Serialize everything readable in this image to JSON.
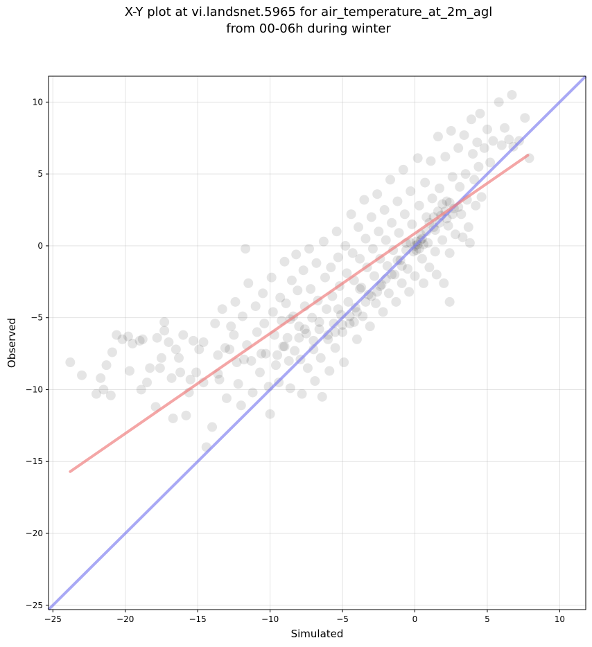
{
  "chart_data": {
    "type": "scatter",
    "title_line1": "X-Y plot at vi.landsnet.5965 for air_temperature_at_2m_agl",
    "title_line2": "from 00-06h during winter",
    "xlabel": "Simulated",
    "ylabel": "Observed",
    "xlim": [
      -25.3,
      11.8
    ],
    "ylim": [
      -25.3,
      11.8
    ],
    "xticks": [
      -25,
      -20,
      -15,
      -10,
      -5,
      0,
      5,
      10
    ],
    "yticks": [
      -25,
      -20,
      -15,
      -10,
      -5,
      0,
      5,
      10
    ],
    "xtick_labels": [
      "−25",
      "−20",
      "−15",
      "−10",
      "−5",
      "0",
      "5",
      "10"
    ],
    "ytick_labels": [
      "−25",
      "−20",
      "−15",
      "−10",
      "−5",
      "0",
      "5",
      "10"
    ],
    "grid": true,
    "point_color": "#000000",
    "point_alpha": 0.1,
    "regression_line": {
      "color": "#f08080",
      "x": [
        -23.8,
        7.8
      ],
      "y": [
        -15.7,
        6.3
      ]
    },
    "identity_line": {
      "color": "#7b7bf0",
      "x": [
        -25.3,
        11.8
      ],
      "y": [
        -25.3,
        11.8
      ]
    },
    "points": [
      [
        -23.8,
        -8.1
      ],
      [
        -23.0,
        -9.0
      ],
      [
        -22.0,
        -10.3
      ],
      [
        -21.7,
        -9.2
      ],
      [
        -21.5,
        -10.0
      ],
      [
        -21.3,
        -8.3
      ],
      [
        -21.0,
        -10.4
      ],
      [
        -20.9,
        -7.4
      ],
      [
        -20.6,
        -6.2
      ],
      [
        -20.2,
        -6.5
      ],
      [
        -19.8,
        -6.3
      ],
      [
        -19.7,
        -8.7
      ],
      [
        -19.5,
        -6.8
      ],
      [
        -19.0,
        -6.6
      ],
      [
        -18.8,
        -6.5
      ],
      [
        -18.9,
        -10.0
      ],
      [
        -18.5,
        -9.5
      ],
      [
        -18.3,
        -8.5
      ],
      [
        -17.9,
        -11.2
      ],
      [
        -17.8,
        -6.4
      ],
      [
        -17.5,
        -7.8
      ],
      [
        -17.3,
        -5.9
      ],
      [
        -17.3,
        -5.3
      ],
      [
        -17.0,
        -6.7
      ],
      [
        -16.8,
        -9.2
      ],
      [
        -16.7,
        -12.0
      ],
      [
        -16.5,
        -7.2
      ],
      [
        -16.2,
        -8.8
      ],
      [
        -16.0,
        -6.2
      ],
      [
        -15.8,
        -11.8
      ],
      [
        -15.6,
        -10.2
      ],
      [
        -15.3,
        -6.6
      ],
      [
        -15.1,
        -8.8
      ],
      [
        -14.9,
        -7.2
      ],
      [
        -14.6,
        -6.7
      ],
      [
        -14.4,
        -14.0
      ],
      [
        -14.0,
        -12.6
      ],
      [
        -13.8,
        -5.4
      ],
      [
        -13.6,
        -7.6
      ],
      [
        -13.5,
        -9.3
      ],
      [
        -13.3,
        -4.4
      ],
      [
        -13.1,
        -7.1
      ],
      [
        -13.0,
        -10.6
      ],
      [
        -12.7,
        -5.6
      ],
      [
        -12.5,
        -6.2
      ],
      [
        -12.4,
        -3.9
      ],
      [
        -12.3,
        -8.1
      ],
      [
        -12.2,
        -9.6
      ],
      [
        -12.0,
        -11.1
      ],
      [
        -11.9,
        -4.9
      ],
      [
        -11.7,
        -0.2
      ],
      [
        -11.6,
        -6.9
      ],
      [
        -11.5,
        -2.6
      ],
      [
        -11.3,
        -8.0
      ],
      [
        -11.2,
        -10.2
      ],
      [
        -11.0,
        -4.2
      ],
      [
        -10.9,
        -6.0
      ],
      [
        -10.7,
        -8.8
      ],
      [
        -10.5,
        -3.3
      ],
      [
        -10.4,
        -5.4
      ],
      [
        -10.3,
        -7.5
      ],
      [
        -10.1,
        -9.8
      ],
      [
        -10.0,
        -11.7
      ],
      [
        -9.9,
        -2.2
      ],
      [
        -9.8,
        -4.6
      ],
      [
        -9.7,
        -6.2
      ],
      [
        -9.6,
        -8.3
      ],
      [
        -9.4,
        -9.5
      ],
      [
        -9.3,
        -3.6
      ],
      [
        -9.2,
        -5.2
      ],
      [
        -9.1,
        -7.0
      ],
      [
        -9.0,
        -1.1
      ],
      [
        -8.9,
        -4.0
      ],
      [
        -8.8,
        -6.4
      ],
      [
        -8.7,
        -8.0
      ],
      [
        -8.6,
        -9.9
      ],
      [
        -8.5,
        -2.4
      ],
      [
        -8.4,
        -4.9
      ],
      [
        -8.3,
        -7.3
      ],
      [
        -8.2,
        -0.6
      ],
      [
        -8.1,
        -3.1
      ],
      [
        -8.0,
        -5.6
      ],
      [
        -7.9,
        -7.9
      ],
      [
        -7.8,
        -10.3
      ],
      [
        -7.7,
        -1.7
      ],
      [
        -7.6,
        -4.2
      ],
      [
        -7.5,
        -6.1
      ],
      [
        -7.4,
        -8.5
      ],
      [
        -7.3,
        -0.2
      ],
      [
        -7.2,
        -3.0
      ],
      [
        -7.1,
        -5.0
      ],
      [
        -7.0,
        -7.2
      ],
      [
        -6.9,
        -9.4
      ],
      [
        -6.8,
        -1.2
      ],
      [
        -6.7,
        -3.8
      ],
      [
        -6.6,
        -5.8
      ],
      [
        -6.5,
        -7.8
      ],
      [
        -6.4,
        -10.5
      ],
      [
        -6.3,
        0.3
      ],
      [
        -6.2,
        -2.2
      ],
      [
        -6.1,
        -4.4
      ],
      [
        -6.0,
        -6.5
      ],
      [
        -5.9,
        -8.7
      ],
      [
        -5.8,
        -1.5
      ],
      [
        -5.7,
        -3.5
      ],
      [
        -5.6,
        -5.4
      ],
      [
        -5.5,
        -7.1
      ],
      [
        -5.4,
        1.0
      ],
      [
        -5.3,
        -0.8
      ],
      [
        -5.2,
        -2.8
      ],
      [
        -5.1,
        -4.8
      ],
      [
        -5.0,
        -6.0
      ],
      [
        -4.9,
        -8.1
      ],
      [
        -4.8,
        0.0
      ],
      [
        -4.7,
        -1.9
      ],
      [
        -4.6,
        -3.9
      ],
      [
        -4.5,
        -5.4
      ],
      [
        -4.4,
        2.2
      ],
      [
        -4.3,
        -0.5
      ],
      [
        -4.2,
        -2.4
      ],
      [
        -4.1,
        -4.3
      ],
      [
        -4.0,
        -6.5
      ],
      [
        -3.9,
        1.3
      ],
      [
        -3.8,
        -0.9
      ],
      [
        -3.7,
        -2.9
      ],
      [
        -3.6,
        -4.9
      ],
      [
        -3.5,
        3.2
      ],
      [
        -3.4,
        0.5
      ],
      [
        -3.3,
        -1.5
      ],
      [
        -3.2,
        -3.4
      ],
      [
        -3.1,
        -5.6
      ],
      [
        -3.0,
        2.0
      ],
      [
        -2.9,
        -0.2
      ],
      [
        -2.8,
        -2.1
      ],
      [
        -2.7,
        -4.0
      ],
      [
        -2.6,
        3.6
      ],
      [
        -2.5,
        1.0
      ],
      [
        -2.4,
        -0.9
      ],
      [
        -2.3,
        -2.7
      ],
      [
        -2.2,
        -4.6
      ],
      [
        -2.1,
        2.5
      ],
      [
        -2.0,
        0.4
      ],
      [
        -1.9,
        -1.4
      ],
      [
        -1.8,
        -3.3
      ],
      [
        -1.7,
        4.6
      ],
      [
        -1.6,
        1.6
      ],
      [
        -1.5,
        -0.3
      ],
      [
        -1.4,
        -2.0
      ],
      [
        -1.3,
        -3.9
      ],
      [
        -1.2,
        3.1
      ],
      [
        -1.1,
        0.9
      ],
      [
        -1.0,
        -1.0
      ],
      [
        -0.9,
        -2.6
      ],
      [
        -0.8,
        5.3
      ],
      [
        -0.7,
        2.2
      ],
      [
        -0.6,
        0.2
      ],
      [
        -0.5,
        -1.6
      ],
      [
        -0.4,
        -3.2
      ],
      [
        -0.3,
        3.8
      ],
      [
        -0.2,
        1.5
      ],
      [
        -0.1,
        -0.4
      ],
      [
        0.0,
        -2.1
      ],
      [
        0.0,
        0.0
      ],
      [
        0.1,
        0.3
      ],
      [
        0.2,
        0.1
      ],
      [
        0.3,
        -0.2
      ],
      [
        0.4,
        0.4
      ],
      [
        0.2,
        6.1
      ],
      [
        0.3,
        2.8
      ],
      [
        0.4,
        0.8
      ],
      [
        0.5,
        -0.9
      ],
      [
        0.6,
        -2.6
      ],
      [
        0.7,
        4.4
      ],
      [
        0.8,
        2.0
      ],
      [
        0.9,
        0.2
      ],
      [
        1.0,
        -1.5
      ],
      [
        1.1,
        5.9
      ],
      [
        1.2,
        3.3
      ],
      [
        1.3,
        1.3
      ],
      [
        1.4,
        -0.4
      ],
      [
        1.5,
        -2.0
      ],
      [
        1.6,
        7.6
      ],
      [
        1.7,
        4.0
      ],
      [
        1.8,
        2.1
      ],
      [
        1.9,
        0.4
      ],
      [
        2.0,
        -2.6
      ],
      [
        2.1,
        6.2
      ],
      [
        2.2,
        3.1
      ],
      [
        2.3,
        1.4
      ],
      [
        2.4,
        -0.5
      ],
      [
        2.5,
        8.0
      ],
      [
        2.6,
        4.8
      ],
      [
        2.7,
        2.6
      ],
      [
        2.8,
        0.8
      ],
      [
        2.4,
        -3.9
      ],
      [
        3.0,
        6.8
      ],
      [
        3.1,
        4.1
      ],
      [
        3.2,
        2.2
      ],
      [
        3.3,
        0.6
      ],
      [
        3.4,
        7.7
      ],
      [
        3.5,
        5.0
      ],
      [
        3.6,
        3.2
      ],
      [
        3.7,
        1.3
      ],
      [
        3.8,
        0.2
      ],
      [
        3.9,
        8.8
      ],
      [
        4.0,
        6.4
      ],
      [
        4.1,
        4.6
      ],
      [
        4.2,
        2.8
      ],
      [
        4.3,
        7.2
      ],
      [
        4.4,
        5.5
      ],
      [
        4.5,
        9.2
      ],
      [
        4.6,
        3.4
      ],
      [
        4.8,
        6.8
      ],
      [
        5.0,
        8.1
      ],
      [
        5.2,
        5.8
      ],
      [
        5.4,
        7.3
      ],
      [
        5.8,
        10.0
      ],
      [
        6.0,
        7.0
      ],
      [
        6.2,
        8.2
      ],
      [
        6.5,
        7.4
      ],
      [
        6.7,
        10.5
      ],
      [
        6.8,
        6.9
      ],
      [
        7.2,
        7.3
      ],
      [
        7.6,
        8.9
      ],
      [
        7.9,
        6.1
      ],
      [
        0.1,
        -0.3
      ],
      [
        0.5,
        0.5
      ],
      [
        0.8,
        1.0
      ],
      [
        1.0,
        1.6
      ],
      [
        1.3,
        2.0
      ],
      [
        1.6,
        2.4
      ],
      [
        1.9,
        2.9
      ],
      [
        2.1,
        2.4
      ],
      [
        2.4,
        3.0
      ],
      [
        -0.3,
        0.2
      ],
      [
        -0.6,
        -0.3
      ],
      [
        -1.2,
        -1.0
      ],
      [
        -2.0,
        -2.3
      ],
      [
        -2.6,
        -3.2
      ],
      [
        -3.0,
        -3.5
      ],
      [
        -3.4,
        -3.9
      ],
      [
        -4.0,
        -4.6
      ],
      [
        -4.5,
        -4.9
      ],
      [
        -5.0,
        -5.5
      ],
      [
        -5.5,
        -6.0
      ],
      [
        -6.0,
        -6.2
      ],
      [
        -7.0,
        -6.6
      ],
      [
        -8.0,
        -6.4
      ],
      [
        -9.0,
        -7.0
      ],
      [
        -9.5,
        -7.6
      ],
      [
        1.4,
        1.1
      ],
      [
        1.7,
        1.6
      ],
      [
        2.2,
        1.9
      ],
      [
        2.6,
        2.2
      ],
      [
        3.0,
        2.7
      ],
      [
        0.6,
        0.1
      ],
      [
        -0.9,
        -1.4
      ],
      [
        -1.6,
        -2.0
      ],
      [
        -2.4,
        -2.8
      ],
      [
        -3.8,
        -3.0
      ],
      [
        -4.2,
        -5.3
      ],
      [
        -5.3,
        -4.4
      ],
      [
        -6.6,
        -5.3
      ],
      [
        -7.6,
        -5.8
      ],
      [
        -8.6,
        -5.1
      ],
      [
        -10.6,
        -7.5
      ],
      [
        -11.8,
        -7.9
      ],
      [
        -12.8,
        -7.2
      ],
      [
        -13.6,
        -8.9
      ],
      [
        -14.6,
        -9.5
      ],
      [
        -15.5,
        -9.3
      ],
      [
        -16.3,
        -7.8
      ],
      [
        -17.6,
        -8.5
      ]
    ]
  }
}
